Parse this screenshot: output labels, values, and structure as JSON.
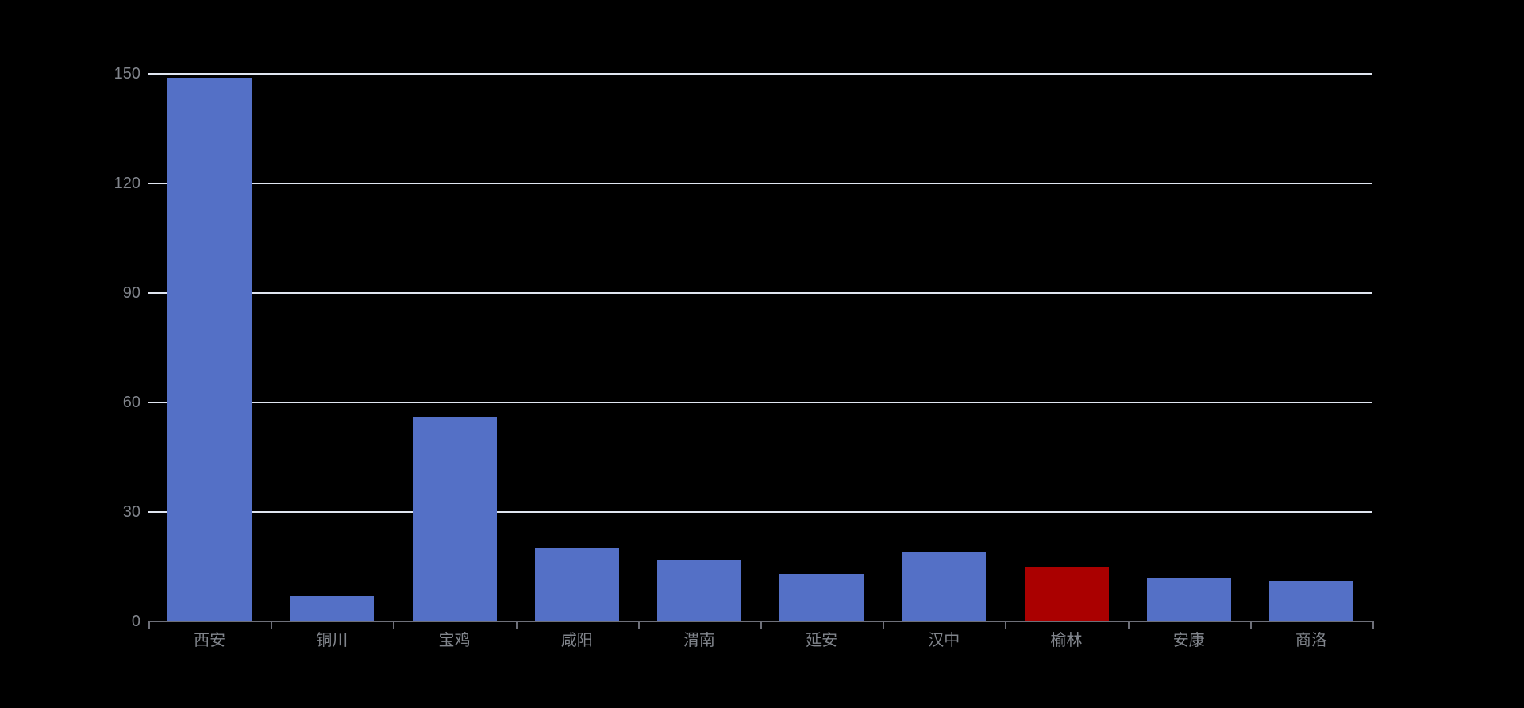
{
  "page": {
    "background_color": "#000000"
  },
  "chart_data": {
    "type": "bar",
    "categories": [
      "西安",
      "铜川",
      "宝鸡",
      "咸阳",
      "渭南",
      "延安",
      "汉中",
      "榆林",
      "安康",
      "商洛"
    ],
    "values": [
      149,
      7,
      56,
      20,
      17,
      13,
      19,
      15,
      12,
      11
    ],
    "default_bar_color": "#5470C6",
    "highlight": {
      "category": "榆林",
      "index": 7,
      "color": "#AA0000"
    },
    "ylim": [
      0,
      150
    ],
    "yticks": [
      0,
      30,
      60,
      90,
      120,
      150
    ],
    "grid": true,
    "legend_position": "none",
    "colors": {
      "grid_line": "#E0E6F1",
      "axis_line": "#6E7079",
      "tick_label": "#81858C"
    }
  }
}
